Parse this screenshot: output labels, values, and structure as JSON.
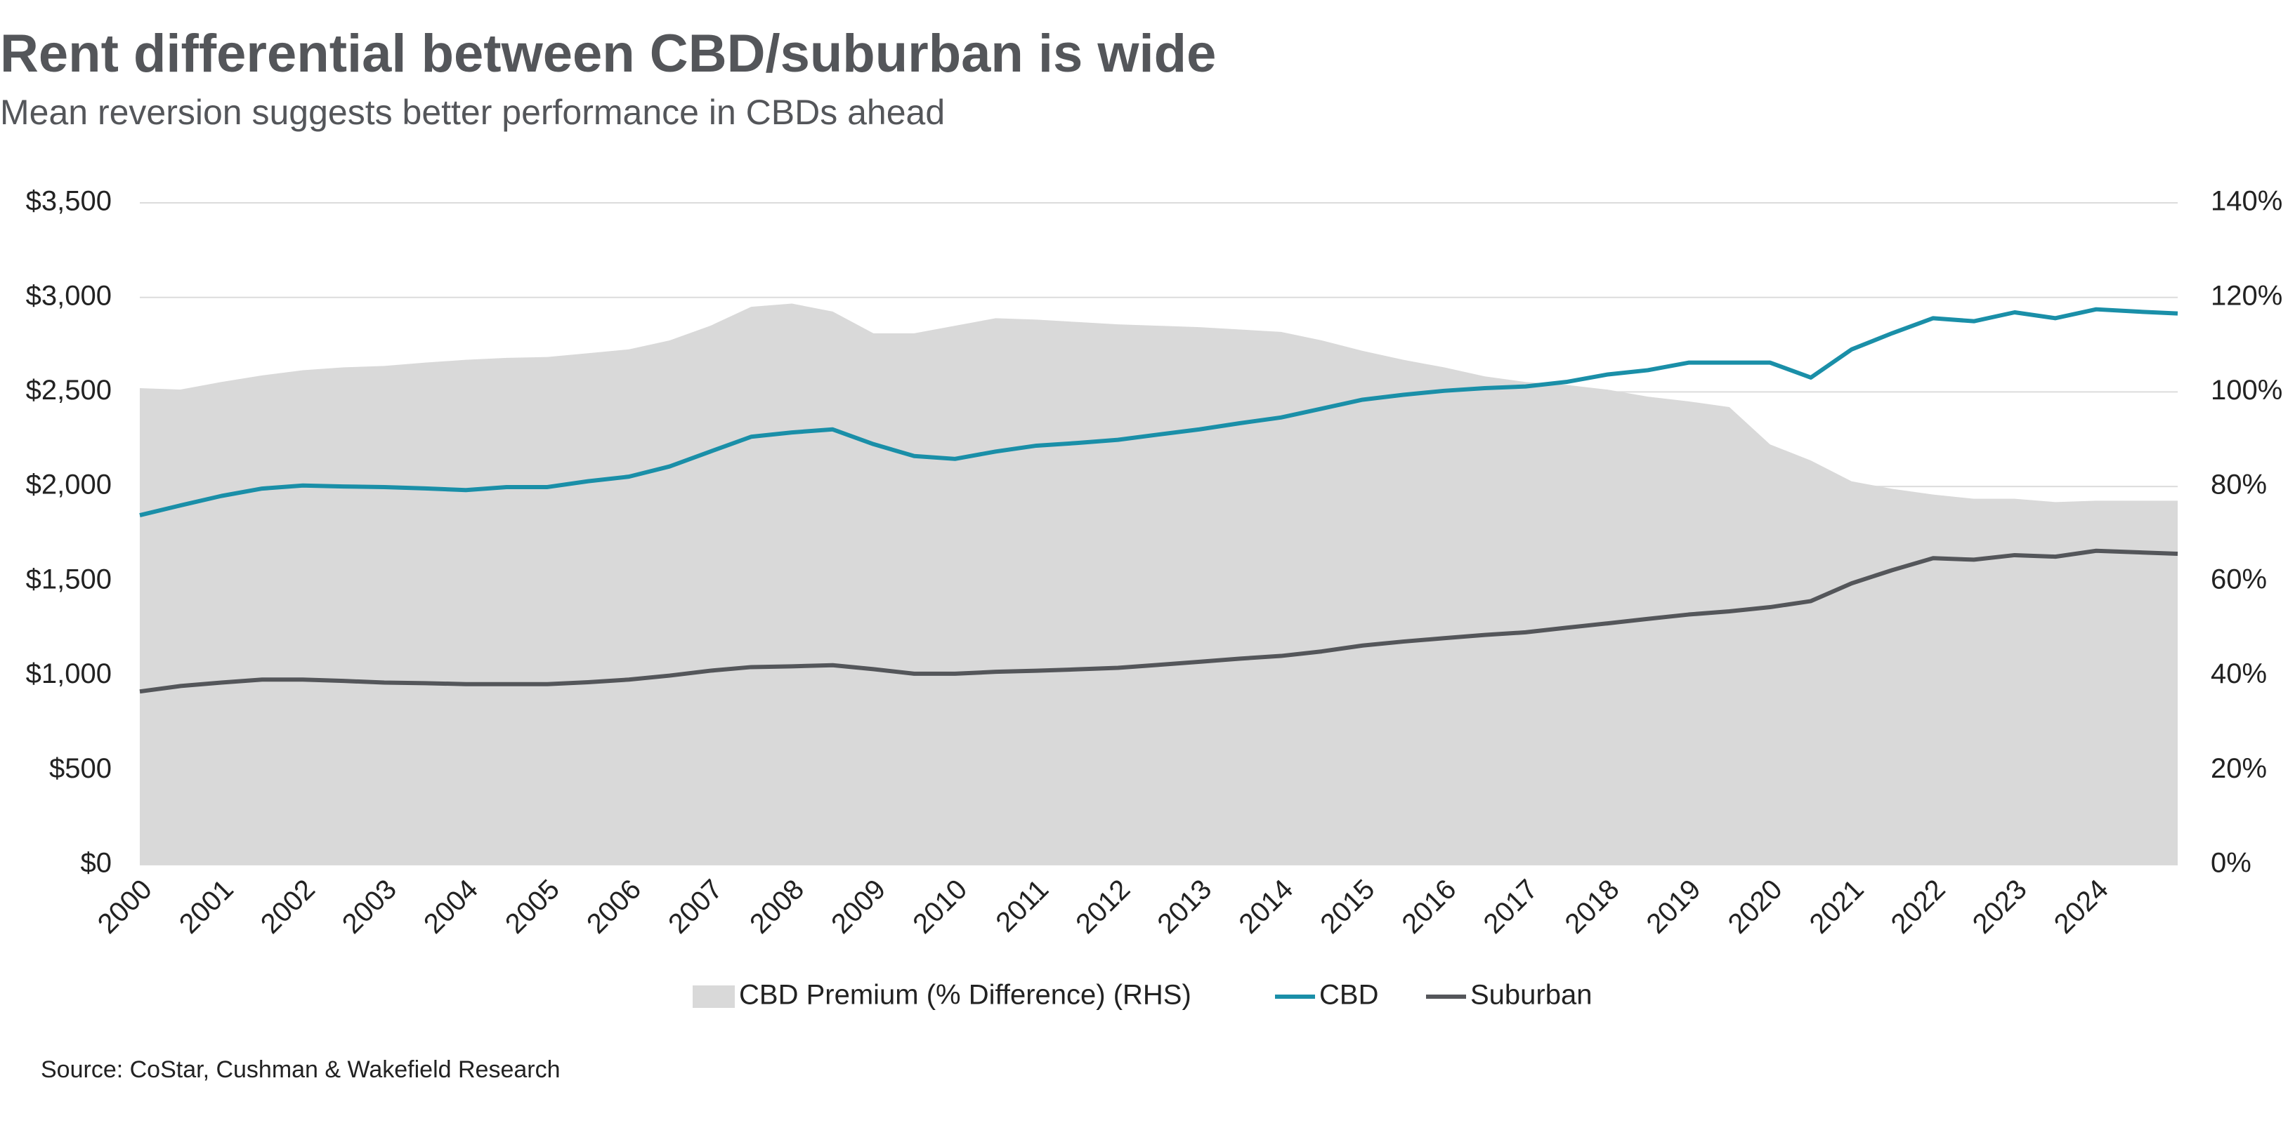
{
  "chart_data": {
    "type": "line",
    "title": "Rent differential between CBD/suburban is wide",
    "subtitle": "Mean reversion suggests better performance in CBDs ahead",
    "source": "Source: CoStar, Cushman & Wakefield Research",
    "categories": [
      "2000",
      null,
      "2001",
      null,
      "2002",
      null,
      "2003",
      null,
      "2004",
      null,
      "2005",
      null,
      "2006",
      null,
      "2007",
      null,
      "2008",
      null,
      "2009",
      null,
      "2010",
      null,
      "2011",
      null,
      "2012",
      null,
      "2013",
      null,
      "2014",
      null,
      "2015",
      null,
      "2016",
      null,
      "2017",
      null,
      "2018",
      null,
      "2019",
      null,
      "2020",
      null,
      "2021",
      null,
      "2022",
      null,
      "2023",
      null,
      "2024",
      null,
      null
    ],
    "series": [
      {
        "name": "CBD Premium (% Difference) (RHS)",
        "type": "area",
        "axis": "y2",
        "color": "#d9d9d9",
        "values": [
          100.8,
          100.5,
          102.1,
          103.5,
          104.6,
          105.2,
          105.5,
          106.2,
          106.8,
          107.2,
          107.4,
          108.2,
          109,
          110.9,
          114,
          118,
          118.7,
          117,
          112.4,
          112.4,
          114,
          115.6,
          115.3,
          114.8,
          114.3,
          114,
          113.7,
          113.2,
          112.7,
          110.9,
          108.7,
          106.8,
          105.2,
          103.3,
          102.1,
          101.5,
          100.5,
          99,
          98,
          96.8,
          88.9,
          85.5,
          81.1,
          79.5,
          78.3,
          77.4,
          77.4,
          76.7,
          77,
          77,
          77
        ]
      },
      {
        "name": "CBD",
        "type": "line",
        "color": "#1a8fa8",
        "values": [
          1848,
          1900,
          1950,
          1989,
          2005,
          2000,
          1997,
          1990,
          1981,
          1997,
          1997,
          2028,
          2052,
          2106,
          2185,
          2263,
          2286,
          2302,
          2224,
          2161,
          2146,
          2185,
          2216,
          2230,
          2247,
          2275,
          2302,
          2335,
          2365,
          2412,
          2459,
          2485,
          2506,
          2520,
          2529,
          2553,
          2592,
          2615,
          2655,
          2655,
          2655,
          2576,
          2725,
          2811,
          2890,
          2874,
          2921,
          2890,
          2937,
          2925,
          2915
        ]
      },
      {
        "name": "Suburban",
        "type": "line",
        "color": "#54565a",
        "values": [
          916,
          945,
          963,
          979,
          979,
          972,
          963,
          960,
          955,
          955,
          955,
          965,
          979,
          1000,
          1026,
          1045,
          1049,
          1055,
          1034,
          1010,
          1010,
          1020,
          1026,
          1033,
          1041,
          1057,
          1073,
          1090,
          1104,
          1128,
          1159,
          1180,
          1198,
          1215,
          1229,
          1253,
          1276,
          1300,
          1323,
          1340,
          1362,
          1394,
          1488,
          1558,
          1621,
          1613,
          1637,
          1629,
          1660,
          1652,
          1644
        ]
      }
    ],
    "ylim": [
      0,
      3500
    ],
    "yticks": [
      {
        "value": 0,
        "label": "$0"
      },
      {
        "value": 500,
        "label": "$500"
      },
      {
        "value": 1000,
        "label": "$1,000"
      },
      {
        "value": 1500,
        "label": "$1,500"
      },
      {
        "value": 2000,
        "label": "$2,000"
      },
      {
        "value": 2500,
        "label": "$2,500"
      },
      {
        "value": 3000,
        "label": "$3,000"
      },
      {
        "value": 3500,
        "label": "$3,500"
      }
    ],
    "y2lim": [
      0,
      140
    ],
    "y2ticks": [
      {
        "value": 0,
        "label": "0%"
      },
      {
        "value": 20,
        "label": "20%"
      },
      {
        "value": 40,
        "label": "40%"
      },
      {
        "value": 60,
        "label": "60%"
      },
      {
        "value": 80,
        "label": "80%"
      },
      {
        "value": 100,
        "label": "100%"
      },
      {
        "value": 120,
        "label": "120%"
      },
      {
        "value": 140,
        "label": "140%"
      }
    ],
    "grid": true,
    "legend": "bottom"
  }
}
